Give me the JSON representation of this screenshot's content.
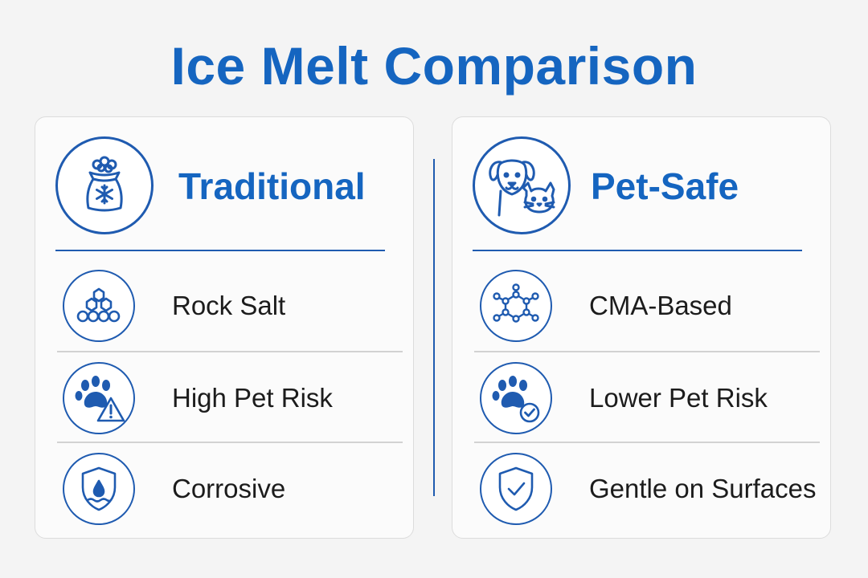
{
  "title": "Ice Melt Comparison",
  "colors": {
    "accent": "#1565c0",
    "icon_stroke": "#1f5bb0",
    "text": "#1c1c1c",
    "background": "#f4f4f4"
  },
  "left": {
    "title": "Traditional",
    "header_icon": "ice-melt-bag-icon",
    "items": [
      {
        "label": "Rock Salt",
        "icon": "rock-salt-icon"
      },
      {
        "label": "High Pet Risk",
        "icon": "paw-warning-icon"
      },
      {
        "label": "Corrosive",
        "icon": "corrosion-shield-icon"
      }
    ]
  },
  "right": {
    "title": "Pet-Safe",
    "header_icon": "dog-cat-icon",
    "items": [
      {
        "label": "CMA-Based",
        "icon": "molecule-icon"
      },
      {
        "label": "Lower Pet Risk",
        "icon": "paw-check-icon"
      },
      {
        "label": "Gentle on Surfaces",
        "icon": "shield-check-icon"
      }
    ]
  }
}
